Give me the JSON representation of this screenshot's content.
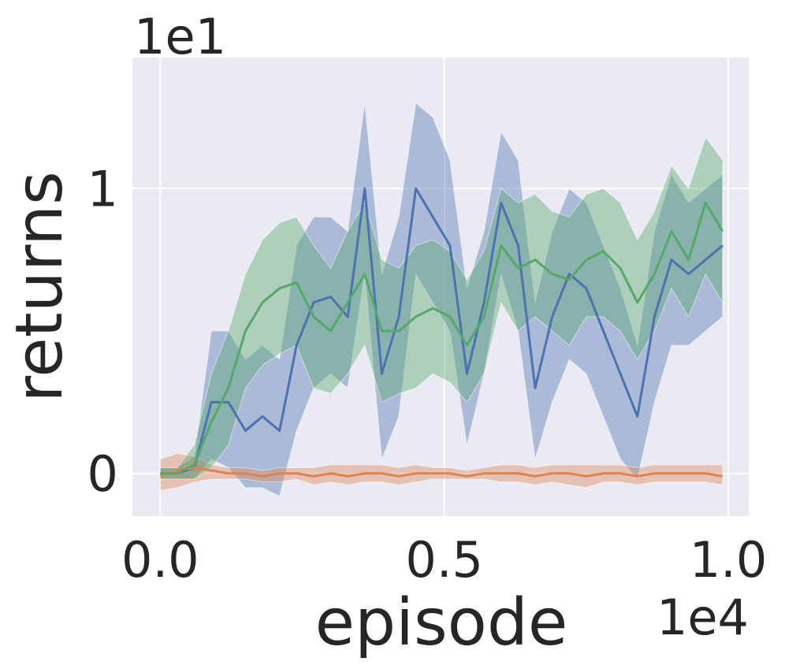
{
  "chart_data": {
    "type": "line",
    "xlabel": "episode",
    "ylabel": "returns",
    "x_offset_text": "1e4",
    "y_offset_text": "1e1",
    "xlim": [
      -0.049,
      1.036
    ],
    "ylim": [
      -0.15,
      1.46
    ],
    "xticks": [
      {
        "value": 0,
        "label": "0.0"
      },
      {
        "value": 0.5,
        "label": "0.5"
      },
      {
        "value": 1,
        "label": "1.0"
      }
    ],
    "yticks": [
      0,
      1
    ],
    "grid": true,
    "x": [
      0,
      0.03,
      0.06,
      0.09,
      0.12,
      0.15,
      0.18,
      0.21,
      0.24,
      0.27,
      0.3,
      0.33,
      0.36,
      0.39,
      0.42,
      0.45,
      0.48,
      0.51,
      0.54,
      0.57,
      0.6,
      0.63,
      0.66,
      0.69,
      0.72,
      0.75,
      0.78,
      0.81,
      0.84,
      0.87,
      0.9,
      0.93,
      0.96,
      0.99
    ],
    "series": [
      {
        "color": "#4c72b0",
        "values": [
          0,
          0,
          0.02,
          0.25,
          0.25,
          0.15,
          0.2,
          0.15,
          0.45,
          0.6,
          0.62,
          0.55,
          1.0,
          0.35,
          0.55,
          1.0,
          0.9,
          0.8,
          0.35,
          0.6,
          0.95,
          0.8,
          0.3,
          0.55,
          0.7,
          0.65,
          0.5,
          0.35,
          0.2,
          0.55,
          0.75,
          0.7,
          0.75,
          0.8
        ],
        "lower": [
          -0.02,
          -0.02,
          -0.02,
          0.05,
          0.02,
          -0.05,
          -0.05,
          -0.08,
          0.15,
          0.3,
          0.35,
          0.3,
          0.7,
          0.05,
          0.2,
          0.7,
          0.6,
          0.5,
          0.1,
          0.35,
          0.7,
          0.5,
          0.05,
          0.25,
          0.4,
          0.35,
          0.2,
          0.05,
          -0.02,
          0.25,
          0.45,
          0.45,
          0.5,
          0.55
        ],
        "upper": [
          0.02,
          0.02,
          0.06,
          0.5,
          0.5,
          0.4,
          0.45,
          0.4,
          0.8,
          0.9,
          0.9,
          0.85,
          1.3,
          0.7,
          0.9,
          1.3,
          1.25,
          1.1,
          0.65,
          0.85,
          1.2,
          1.1,
          0.6,
          0.85,
          1.0,
          0.95,
          0.8,
          0.65,
          0.45,
          0.85,
          1.05,
          0.95,
          1.0,
          1.05
        ]
      },
      {
        "color": "#dd8452",
        "values": [
          -0.01,
          0.01,
          0.02,
          0.01,
          0,
          0,
          -0.01,
          0,
          0,
          -0.01,
          0,
          -0.01,
          0,
          0,
          -0.01,
          0,
          0,
          0,
          -0.01,
          0,
          0,
          0,
          -0.01,
          0,
          0,
          -0.01,
          0,
          0,
          -0.01,
          0,
          0,
          0,
          0,
          -0.01
        ],
        "lower": [
          -0.06,
          -0.05,
          -0.03,
          -0.02,
          -0.02,
          -0.02,
          -0.03,
          -0.03,
          -0.02,
          -0.04,
          -0.03,
          -0.04,
          -0.03,
          -0.03,
          -0.04,
          -0.03,
          -0.02,
          -0.02,
          -0.02,
          -0.02,
          -0.03,
          -0.03,
          -0.04,
          -0.03,
          -0.04,
          -0.05,
          -0.03,
          -0.03,
          -0.04,
          -0.03,
          -0.03,
          -0.03,
          -0.03,
          -0.04
        ],
        "upper": [
          0.05,
          0.07,
          0.06,
          0.03,
          0.02,
          0.02,
          0.01,
          0.02,
          0.02,
          0.02,
          0.03,
          0.03,
          0.03,
          0.03,
          0.02,
          0.03,
          0.02,
          0.02,
          0.01,
          0.02,
          0.03,
          0.03,
          0.02,
          0.03,
          0.03,
          0.03,
          0.03,
          0.03,
          0.02,
          0.03,
          0.03,
          0.03,
          0.03,
          0.03
        ]
      },
      {
        "color": "#55a868",
        "values": [
          0,
          0,
          0.03,
          0.18,
          0.3,
          0.5,
          0.6,
          0.65,
          0.67,
          0.55,
          0.5,
          0.6,
          0.7,
          0.5,
          0.5,
          0.55,
          0.58,
          0.55,
          0.45,
          0.55,
          0.8,
          0.72,
          0.75,
          0.7,
          0.68,
          0.75,
          0.78,
          0.72,
          0.6,
          0.7,
          0.85,
          0.75,
          0.95,
          0.85
        ],
        "lower": [
          -0.02,
          -0.02,
          -0.02,
          0.02,
          0.1,
          0.3,
          0.38,
          0.42,
          0.45,
          0.3,
          0.28,
          0.35,
          0.45,
          0.25,
          0.28,
          0.3,
          0.35,
          0.32,
          0.25,
          0.35,
          0.6,
          0.5,
          0.55,
          0.5,
          0.45,
          0.55,
          0.55,
          0.5,
          0.4,
          0.5,
          0.65,
          0.55,
          0.7,
          0.6
        ],
        "upper": [
          0.02,
          0.02,
          0.1,
          0.35,
          0.5,
          0.7,
          0.82,
          0.88,
          0.9,
          0.8,
          0.72,
          0.85,
          0.95,
          0.75,
          0.72,
          0.8,
          0.82,
          0.78,
          0.68,
          0.78,
          1.0,
          0.95,
          0.98,
          0.92,
          0.9,
          0.98,
          1.0,
          0.95,
          0.82,
          0.92,
          1.08,
          1.0,
          1.18,
          1.1
        ]
      }
    ]
  }
}
